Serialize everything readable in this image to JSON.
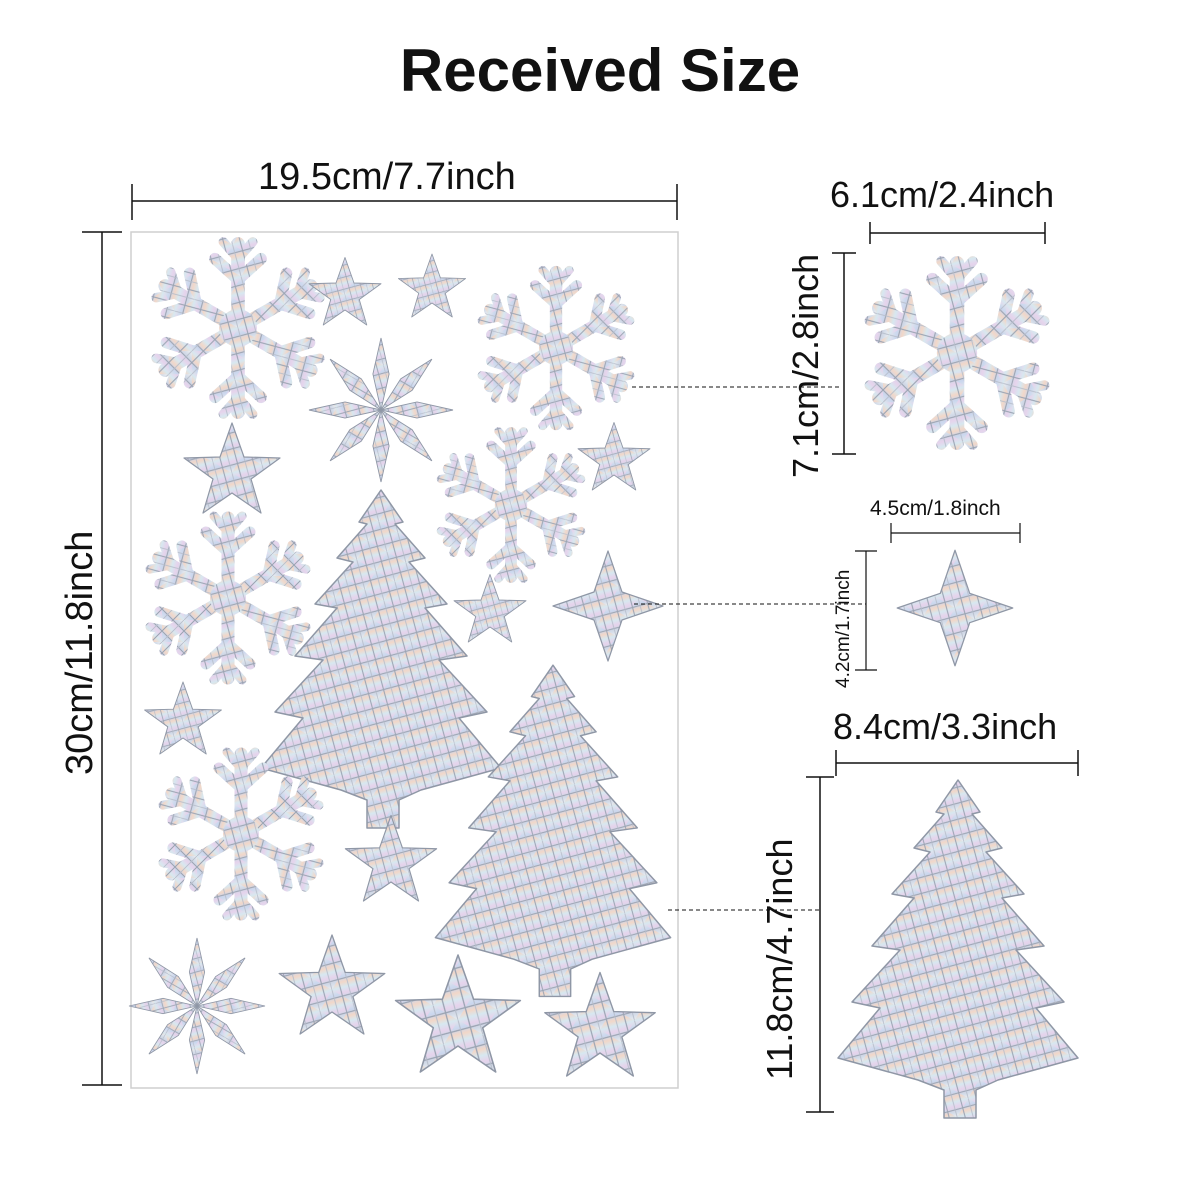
{
  "title": "Received Size",
  "sheet": {
    "width_label": "19.5cm/7.7inch",
    "height_label": "30cm/11.8inch"
  },
  "details": {
    "snowflake": {
      "width_label": "6.1cm/2.4inch",
      "height_label": "7.1cm/2.8inch"
    },
    "star": {
      "width_label": "4.5cm/1.8inch",
      "height_label": "4.2cm/1.7inch"
    },
    "tree": {
      "width_label": "8.4cm/3.3inch",
      "height_label": "11.8cm/4.7inch"
    }
  },
  "colors": {
    "line": "#111111",
    "sheet_border": "#cfcfcf",
    "holo_base": "#d9dbe2",
    "holo_stroke": "#8f97a6"
  }
}
